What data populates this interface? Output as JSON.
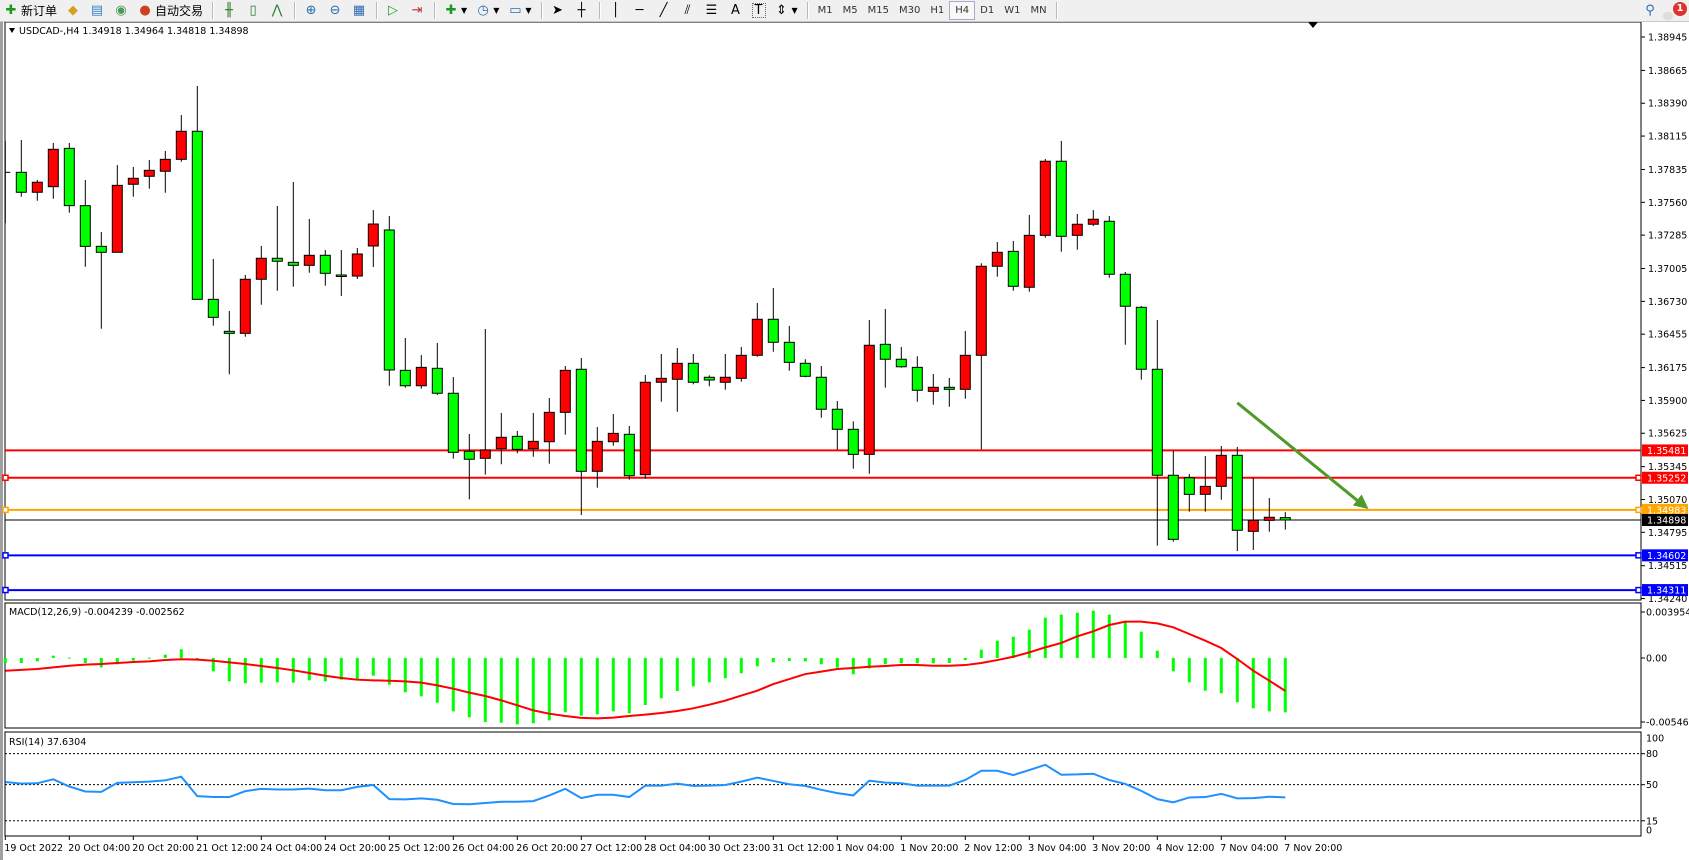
{
  "toolbar": {
    "new_order": {
      "icon": "new-order-icon",
      "label": "新订单"
    },
    "auto_trading": {
      "icon": "auto-trading-icon",
      "label": "自动交易"
    },
    "icons": [
      "metaeditor-icon",
      "market-watch-icon",
      "signals-icon",
      "bar-chart-icon",
      "candlestick-icon",
      "line-chart-icon",
      "zoom-in-icon",
      "zoom-out-icon",
      "tile-windows-icon",
      "auto-scroll-icon",
      "chart-shift-icon",
      "indicators-icon",
      "periods-icon",
      "templates-icon",
      "cursor-icon",
      "crosshair-icon",
      "vertical-line-icon",
      "horizontal-line-icon",
      "trendline-icon",
      "equidistant-channel-icon",
      "fibonacci-icon",
      "text-icon",
      "text-label-icon",
      "arrows-icon"
    ],
    "text_tool": "A",
    "label_tool": "T",
    "timeframes": [
      "M1",
      "M5",
      "M15",
      "M30",
      "H1",
      "H4",
      "D1",
      "W1",
      "MN"
    ],
    "active_timeframe": "H4",
    "notification_count": "1"
  },
  "chart": {
    "symbol_header": "USDCAD-,H4  1.34918 1.34964 1.34818 1.34898",
    "macd_header": "MACD(12,26,9) -0.004239 -0.002562",
    "rsi_header": "RSI(14) 37.6304"
  },
  "chart_data": {
    "type": "candlestick",
    "symbol": "USDCAD-",
    "timeframe": "H4",
    "ohlc_order": [
      "open",
      "high",
      "low",
      "close"
    ],
    "colors": {
      "bull": "#ff0000",
      "bear": "#00ff00",
      "outline": "#000000",
      "macd_hist": "#00ff00",
      "macd_signal": "#ff0000",
      "rsi": "#1e90ff",
      "arrow": "#4e9a2a"
    },
    "price_axis": {
      "range": [
        1.3424,
        1.38945
      ],
      "ticks": [
        "1.38945",
        "1.38665",
        "1.38390",
        "1.38115",
        "1.37835",
        "1.37560",
        "1.37285",
        "1.37005",
        "1.36730",
        "1.36455",
        "1.36175",
        "1.35900",
        "1.35625",
        "1.35345",
        "1.35070",
        "1.34795",
        "1.34515",
        "1.34240"
      ]
    },
    "time_labels": [
      "19 Oct 2022",
      "20 Oct 04:00",
      "20 Oct 20:00",
      "21 Oct 12:00",
      "24 Oct 04:00",
      "24 Oct 20:00",
      "25 Oct 12:00",
      "26 Oct 04:00",
      "26 Oct 20:00",
      "27 Oct 12:00",
      "28 Oct 04:00",
      "30 Oct 23:00",
      "31 Oct 12:00",
      "1 Nov 04:00",
      "1 Nov 20:00",
      "2 Nov 12:00",
      "3 Nov 04:00",
      "3 Nov 20:00",
      "4 Nov 12:00",
      "7 Nov 04:00",
      "7 Nov 20:00"
    ],
    "horizontal_lines": [
      {
        "price": "1.35481",
        "color": "#ff0000"
      },
      {
        "price": "1.35252",
        "color": "#ff0000"
      },
      {
        "price": "1.34983",
        "color": "#ffa500"
      },
      {
        "price": "1.34898",
        "color": "#000000",
        "bid": true
      },
      {
        "price": "1.34602",
        "color": "#0000ff"
      },
      {
        "price": "1.34311",
        "color": "#0000ff"
      }
    ],
    "annotation_arrow": {
      "from": {
        "bar": 77,
        "price": 1.3588
      },
      "to": {
        "bar": 85.2,
        "price": 1.3499
      }
    },
    "candles": [
      [
        1.37811,
        1.38074,
        1.37384,
        1.37811
      ],
      [
        1.37811,
        1.38082,
        1.37607,
        1.37644
      ],
      [
        1.37644,
        1.37747,
        1.37573,
        1.37728
      ],
      [
        1.37691,
        1.38057,
        1.3759,
        1.38004
      ],
      [
        1.38012,
        1.38057,
        1.37473,
        1.37532
      ],
      [
        1.37532,
        1.37747,
        1.3702,
        1.37191
      ],
      [
        1.37191,
        1.37311,
        1.36501,
        1.37141
      ],
      [
        1.37141,
        1.37872,
        1.37141,
        1.37702
      ],
      [
        1.37711,
        1.37856,
        1.37607,
        1.37761
      ],
      [
        1.37778,
        1.37914,
        1.37674,
        1.37828
      ],
      [
        1.3782,
        1.3799,
        1.3764,
        1.3792
      ],
      [
        1.3792,
        1.38291,
        1.379,
        1.38155
      ],
      [
        1.38155,
        1.38534,
        1.36747,
        1.36747
      ],
      [
        1.36747,
        1.37085,
        1.36526,
        1.36596
      ],
      [
        1.36479,
        1.36649,
        1.36119,
        1.36462
      ],
      [
        1.36462,
        1.36951,
        1.36434,
        1.36915
      ],
      [
        1.36915,
        1.37194,
        1.36702,
        1.37091
      ],
      [
        1.37091,
        1.37529,
        1.36819,
        1.37066
      ],
      [
        1.37057,
        1.3773,
        1.36853,
        1.37032
      ],
      [
        1.37032,
        1.3742,
        1.3697,
        1.37116
      ],
      [
        1.37116,
        1.3716,
        1.36861,
        1.36965
      ],
      [
        1.36951,
        1.3716,
        1.36775,
        1.36942
      ],
      [
        1.36942,
        1.37177,
        1.36917,
        1.37127
      ],
      [
        1.37194,
        1.37495,
        1.37018,
        1.37378
      ],
      [
        1.37328,
        1.37445,
        1.36023,
        1.36155
      ],
      [
        1.36152,
        1.36423,
        1.36007,
        1.36023
      ],
      [
        1.36023,
        1.3628,
        1.35998,
        1.36177
      ],
      [
        1.36169,
        1.36381,
        1.35945,
        1.3596
      ],
      [
        1.3596,
        1.36096,
        1.35412,
        1.35465
      ],
      [
        1.35474,
        1.35619,
        1.35071,
        1.35407
      ],
      [
        1.35415,
        1.36498,
        1.35278,
        1.35485
      ],
      [
        1.35495,
        1.35795,
        1.35365,
        1.35591
      ],
      [
        1.35599,
        1.35644,
        1.35457,
        1.3549
      ],
      [
        1.35495,
        1.35795,
        1.35428,
        1.35557
      ],
      [
        1.35554,
        1.3592,
        1.3537,
        1.358
      ],
      [
        1.358,
        1.36188,
        1.35613,
        1.36152
      ],
      [
        1.36161,
        1.36255,
        1.3494,
        1.35306
      ],
      [
        1.35306,
        1.35677,
        1.35169,
        1.35557
      ],
      [
        1.35554,
        1.35786,
        1.35521,
        1.35624
      ],
      [
        1.35616,
        1.35686,
        1.35236,
        1.35269
      ],
      [
        1.35278,
        1.36113,
        1.35244,
        1.36052
      ],
      [
        1.36052,
        1.36289,
        1.35889,
        1.36085
      ],
      [
        1.36077,
        1.36339,
        1.35805,
        1.36211
      ],
      [
        1.36211,
        1.36289,
        1.36035,
        1.36052
      ],
      [
        1.36094,
        1.3611,
        1.36018,
        1.36071
      ],
      [
        1.36052,
        1.36289,
        1.3599,
        1.36094
      ],
      [
        1.36085,
        1.36348,
        1.36057,
        1.36278
      ],
      [
        1.36278,
        1.36716,
        1.36266,
        1.3658
      ],
      [
        1.3658,
        1.36842,
        1.36308,
        1.36387
      ],
      [
        1.36387,
        1.36524,
        1.36149,
        1.36219
      ],
      [
        1.36211,
        1.36245,
        1.36094,
        1.36102
      ],
      [
        1.36094,
        1.36188,
        1.35755,
        1.35826
      ],
      [
        1.35826,
        1.35895,
        1.35487,
        1.35658
      ],
      [
        1.35658,
        1.35725,
        1.35328,
        1.35448
      ],
      [
        1.35448,
        1.36574,
        1.35286,
        1.36362
      ],
      [
        1.3637,
        1.36666,
        1.36007,
        1.36245
      ],
      [
        1.36245,
        1.36348,
        1.36174,
        1.36182
      ],
      [
        1.36177,
        1.3627,
        1.35889,
        1.35985
      ],
      [
        1.35976,
        1.36121,
        1.35864,
        1.3601
      ],
      [
        1.3601,
        1.36088,
        1.35847,
        1.35993
      ],
      [
        1.35993,
        1.36482,
        1.35914,
        1.36278
      ],
      [
        1.36278,
        1.37049,
        1.3549,
        1.37024
      ],
      [
        1.37024,
        1.37227,
        1.36937,
        1.37141
      ],
      [
        1.37149,
        1.37236,
        1.36819,
        1.36856
      ],
      [
        1.36848,
        1.37454,
        1.36811,
        1.37283
      ],
      [
        1.37283,
        1.37923,
        1.37263,
        1.37904
      ],
      [
        1.37904,
        1.38074,
        1.37146,
        1.37275
      ],
      [
        1.37283,
        1.37462,
        1.37163,
        1.37376
      ],
      [
        1.37376,
        1.37495,
        1.37361,
        1.37418
      ],
      [
        1.37401,
        1.37445,
        1.36928,
        1.36957
      ],
      [
        1.36957,
        1.36976,
        1.36367,
        1.36689
      ],
      [
        1.3668,
        1.36691,
        1.36074,
        1.36161
      ],
      [
        1.36161,
        1.36574,
        1.34683,
        1.35273
      ],
      [
        1.35273,
        1.35479,
        1.34716,
        1.34736
      ],
      [
        1.35252,
        1.35283,
        1.34968,
        1.35113
      ],
      [
        1.35113,
        1.35434,
        1.34968,
        1.3518
      ],
      [
        1.3518,
        1.35518,
        1.35068,
        1.3544
      ],
      [
        1.3544,
        1.3551,
        1.34638,
        1.34812
      ],
      [
        1.34803,
        1.35252,
        1.34647,
        1.34895
      ],
      [
        1.34895,
        1.35082,
        1.348,
        1.34921
      ],
      [
        1.34918,
        1.34964,
        1.34818,
        1.34898
      ]
    ],
    "macd": {
      "axis_labels": [
        "0.003954",
        "0.00",
        "-0.005464"
      ],
      "histogram": [
        -0.00039,
        -0.00039,
        -0.00026,
        0.00018,
        3e-05,
        -0.00039,
        -0.00073,
        -0.00049,
        -0.00021,
        3e-05,
        0.00026,
        0.00068,
        -0.0001,
        -0.00104,
        -0.00182,
        -0.00197,
        -0.00192,
        -0.0019,
        -0.00192,
        -0.00174,
        -0.00182,
        -0.00169,
        -0.00164,
        -0.00138,
        -0.00208,
        -0.00267,
        -0.00299,
        -0.00348,
        -0.00416,
        -0.00462,
        -0.00499,
        -0.00504,
        -0.00517,
        -0.00509,
        -0.00486,
        -0.00423,
        -0.00449,
        -0.00439,
        -0.00416,
        -0.00431,
        -0.00366,
        -0.00314,
        -0.00257,
        -0.00221,
        -0.0019,
        -0.00158,
        -0.00119,
        -0.00065,
        -0.00034,
        -0.00023,
        -0.00026,
        -0.00049,
        -0.00075,
        -0.00127,
        -0.00081,
        -0.00049,
        -0.00042,
        -0.00042,
        -0.00042,
        -0.00039,
        -0.00016,
        0.00065,
        0.00135,
        0.00166,
        0.00221,
        0.00314,
        0.00338,
        0.00353,
        0.00369,
        0.00338,
        0.00278,
        0.00205,
        0.00057,
        -0.00104,
        -0.0019,
        -0.00255,
        -0.00275,
        -0.00345,
        -0.00392,
        -0.00416,
        -0.004239
      ],
      "signal": [
        -0.00099,
        -0.00093,
        -0.00086,
        -0.00073,
        -0.0006,
        -0.00052,
        -0.00047,
        -0.00039,
        -0.00031,
        -0.00026,
        -0.00016,
        -0.0001,
        -0.00013,
        -0.00021,
        -0.00034,
        -0.00047,
        -0.00062,
        -0.00078,
        -0.00096,
        -0.00117,
        -0.00138,
        -0.00156,
        -0.00169,
        -0.00174,
        -0.00177,
        -0.00182,
        -0.00192,
        -0.00213,
        -0.00239,
        -0.0027,
        -0.00296,
        -0.0033,
        -0.00369,
        -0.00408,
        -0.00434,
        -0.00452,
        -0.00467,
        -0.0047,
        -0.00465,
        -0.00452,
        -0.00441,
        -0.00429,
        -0.00413,
        -0.00392,
        -0.00364,
        -0.00332,
        -0.00293,
        -0.00255,
        -0.00203,
        -0.00164,
        -0.00125,
        -0.00106,
        -0.00086,
        -0.00078,
        -0.00068,
        -0.00062,
        -0.00055,
        -0.00055,
        -0.0006,
        -0.0006,
        -0.00055,
        -0.00039,
        -0.00016,
        0.0001,
        0.00044,
        0.00083,
        0.00117,
        0.00169,
        0.00208,
        0.00257,
        0.00283,
        0.00283,
        0.0027,
        0.00239,
        0.00187,
        0.00135,
        0.00078,
        -8e-05,
        -0.00099,
        -0.00177,
        -0.002562
      ]
    },
    "rsi": {
      "axis_labels": [
        "100",
        "80",
        "50",
        "15",
        "0"
      ],
      "levels": [
        80,
        50,
        15
      ],
      "values": [
        52.6,
        51,
        51.3,
        55.2,
        48.2,
        43.4,
        43,
        51.7,
        52.3,
        52.9,
        54.2,
        57.7,
        38.9,
        38,
        38,
        43.7,
        45.9,
        45.3,
        45.3,
        46.2,
        44.6,
        44.6,
        47.8,
        49.7,
        36,
        35.7,
        36.7,
        35.4,
        31.3,
        31,
        32.2,
        33.5,
        33.5,
        34.1,
        39.6,
        45.9,
        37,
        40.2,
        40.2,
        38,
        49.1,
        49.1,
        51,
        48.8,
        49.1,
        49.7,
        52.9,
        56.8,
        53.6,
        50.4,
        48.8,
        45,
        41.8,
        39.6,
        53.9,
        52,
        51.3,
        49.1,
        49.1,
        49.1,
        54.5,
        63.4,
        63.4,
        59.3,
        64.1,
        69.2,
        59.6,
        59.9,
        60.6,
        54.5,
        50.7,
        44,
        36,
        32.9,
        37.6,
        38,
        41.1,
        36.7,
        37,
        38.3,
        37.6304
      ]
    }
  }
}
